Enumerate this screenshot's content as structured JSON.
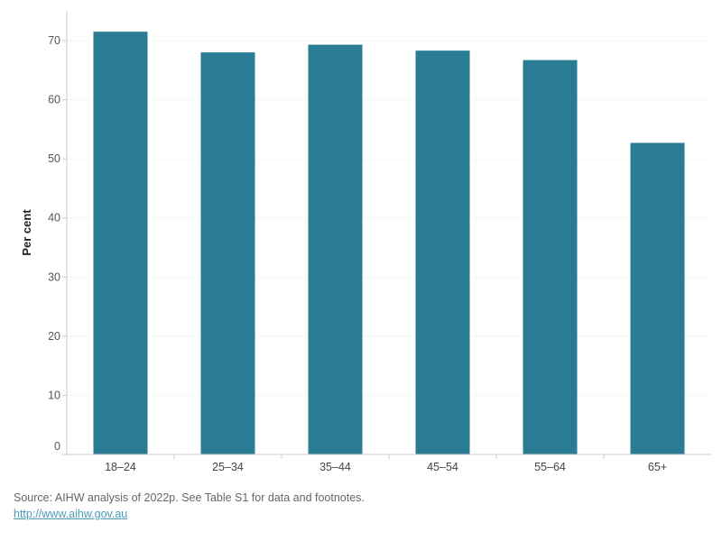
{
  "chart_data": {
    "type": "bar",
    "categories": [
      "18–24",
      "25–34",
      "35–44",
      "45–54",
      "55–64",
      "65+"
    ],
    "values": [
      71.5,
      68.0,
      69.3,
      68.3,
      66.7,
      52.7
    ],
    "title": "",
    "xlabel": "",
    "ylabel": "Per cent",
    "ylim": [
      0,
      75
    ],
    "yticks": [
      0,
      10,
      20,
      30,
      40,
      50,
      60,
      70
    ],
    "grid": true,
    "bar_color": "#2a7b94"
  },
  "footer": {
    "source": "Source: AIHW analysis of 2022p. See Table S1 for data and footnotes.",
    "link": "http://www.aihw.gov.au"
  }
}
